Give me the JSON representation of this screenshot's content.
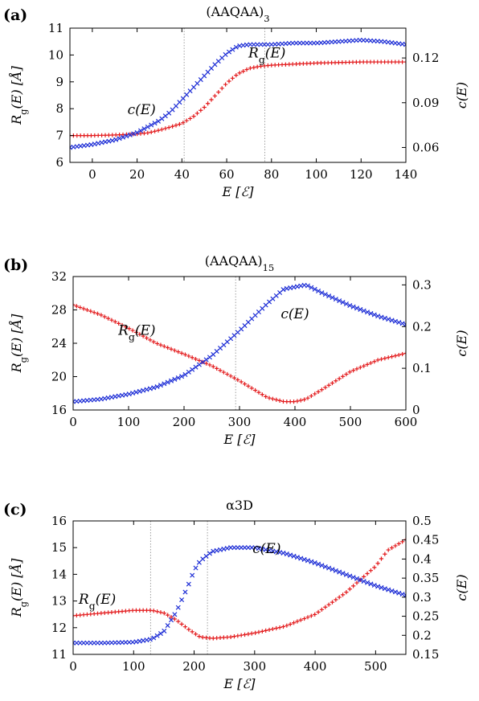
{
  "colors": {
    "rg": "#e31a1c",
    "c": "#1f2fd6"
  },
  "chart_data": [
    {
      "type": "scatter",
      "panel": "(a)",
      "title": "(AAQAA)3",
      "xlabel": "E [ℰ]",
      "ylabel": "Rg(E) [Å]",
      "y2label": "c(E)",
      "xlim": [
        -10,
        140
      ],
      "ylim": [
        6,
        11
      ],
      "y2lim": [
        0.05,
        0.14
      ],
      "xticks": [
        0,
        20,
        40,
        60,
        80,
        100,
        120,
        140
      ],
      "yticks": [
        6,
        7,
        8,
        9,
        10,
        11
      ],
      "y2ticks": [
        0.06,
        0.09,
        0.12
      ],
      "vlines": [
        41,
        77
      ],
      "annotations": [
        {
          "text": "c(E)",
          "x": 22,
          "y": 7.8
        },
        {
          "text": "Rg(E)",
          "x": 78,
          "y": 9.9
        }
      ],
      "series": [
        {
          "name": "Rg(E)",
          "axis": "left",
          "marker": "plus",
          "color": "#e31a1c",
          "x": [
            -10,
            0,
            10,
            20,
            25,
            30,
            35,
            40,
            45,
            50,
            55,
            60,
            65,
            70,
            75,
            80,
            90,
            100,
            110,
            120,
            130,
            140
          ],
          "y": [
            7.0,
            7.0,
            7.02,
            7.06,
            7.1,
            7.2,
            7.32,
            7.45,
            7.7,
            8.05,
            8.5,
            8.95,
            9.3,
            9.5,
            9.58,
            9.62,
            9.66,
            9.7,
            9.72,
            9.74,
            9.74,
            9.74
          ]
        },
        {
          "name": "c(E)",
          "axis": "right",
          "marker": "cross",
          "color": "#1f2fd6",
          "x": [
            -10,
            0,
            10,
            20,
            25,
            30,
            35,
            40,
            45,
            50,
            55,
            60,
            65,
            70,
            80,
            90,
            100,
            110,
            120,
            130,
            140
          ],
          "y": [
            0.06,
            0.062,
            0.065,
            0.07,
            0.074,
            0.078,
            0.084,
            0.092,
            0.1,
            0.108,
            0.116,
            0.123,
            0.128,
            0.129,
            0.129,
            0.13,
            0.13,
            0.131,
            0.132,
            0.131,
            0.129
          ]
        }
      ]
    },
    {
      "type": "scatter",
      "panel": "(b)",
      "title": "(AAQAA)15",
      "xlabel": "E [ℰ]",
      "ylabel": "Rg(E) [Å]",
      "y2label": "c(E)",
      "xlim": [
        0,
        600
      ],
      "ylim": [
        16,
        32
      ],
      "y2lim": [
        0,
        0.32
      ],
      "xticks": [
        0,
        100,
        200,
        300,
        400,
        500,
        600
      ],
      "yticks": [
        16,
        20,
        24,
        28,
        32
      ],
      "y2ticks": [
        0,
        0.1,
        0.2,
        0.3
      ],
      "vlines": [
        293
      ],
      "annotations": [
        {
          "text": "Rg(E)",
          "x": 115,
          "y": 25.0
        },
        {
          "text": "c(E)",
          "x": 400,
          "y": 27.0
        }
      ],
      "series": [
        {
          "name": "Rg(E)",
          "axis": "left",
          "marker": "plus",
          "color": "#e31a1c",
          "x": [
            0,
            50,
            100,
            150,
            200,
            250,
            300,
            350,
            380,
            400,
            420,
            450,
            500,
            550,
            600
          ],
          "y": [
            28.6,
            27.4,
            25.8,
            24.0,
            22.7,
            21.3,
            19.5,
            17.5,
            17.0,
            17.0,
            17.3,
            18.5,
            20.6,
            22.0,
            22.8
          ]
        },
        {
          "name": "c(E)",
          "axis": "right",
          "marker": "cross",
          "color": "#1f2fd6",
          "x": [
            0,
            50,
            100,
            150,
            200,
            250,
            300,
            350,
            380,
            400,
            420,
            450,
            500,
            550,
            600
          ],
          "y": [
            0.02,
            0.026,
            0.038,
            0.055,
            0.083,
            0.13,
            0.19,
            0.255,
            0.29,
            0.295,
            0.3,
            0.28,
            0.25,
            0.225,
            0.205
          ]
        }
      ]
    },
    {
      "type": "scatter",
      "panel": "(c)",
      "title": "α3D",
      "xlabel": "E [ℰ]",
      "ylabel": "Rg(E) [Å]",
      "y2label": "c(E)",
      "xlim": [
        0,
        550
      ],
      "ylim": [
        11,
        16
      ],
      "y2lim": [
        0.15,
        0.5
      ],
      "xticks": [
        0,
        100,
        200,
        300,
        400,
        500
      ],
      "yticks": [
        11,
        12,
        13,
        14,
        15,
        16
      ],
      "y2ticks": [
        0.15,
        0.2,
        0.25,
        0.3,
        0.35,
        0.4,
        0.45,
        0.5
      ],
      "vlines": [
        128,
        222
      ],
      "annotations": [
        {
          "text": "Rg(E)",
          "x": 40,
          "y": 12.9
        },
        {
          "text": "c(E)",
          "x": 320,
          "y": 14.8
        }
      ],
      "series": [
        {
          "name": "Rg(E)",
          "axis": "left",
          "marker": "plus",
          "color": "#e31a1c",
          "x": [
            0,
            50,
            100,
            130,
            150,
            170,
            190,
            210,
            230,
            260,
            300,
            350,
            400,
            450,
            500,
            520,
            550
          ],
          "y": [
            12.45,
            12.55,
            12.65,
            12.65,
            12.55,
            12.3,
            11.95,
            11.65,
            11.6,
            11.65,
            11.8,
            12.05,
            12.5,
            13.3,
            14.3,
            14.9,
            15.3
          ]
        },
        {
          "name": "c(E)",
          "axis": "right",
          "marker": "cross",
          "color": "#1f2fd6",
          "x": [
            0,
            50,
            100,
            130,
            150,
            170,
            190,
            200,
            210,
            230,
            260,
            300,
            350,
            400,
            450,
            500,
            550
          ],
          "y": [
            0.18,
            0.18,
            0.182,
            0.19,
            0.21,
            0.26,
            0.33,
            0.37,
            0.395,
            0.42,
            0.43,
            0.43,
            0.415,
            0.39,
            0.36,
            0.33,
            0.305
          ]
        }
      ]
    }
  ]
}
